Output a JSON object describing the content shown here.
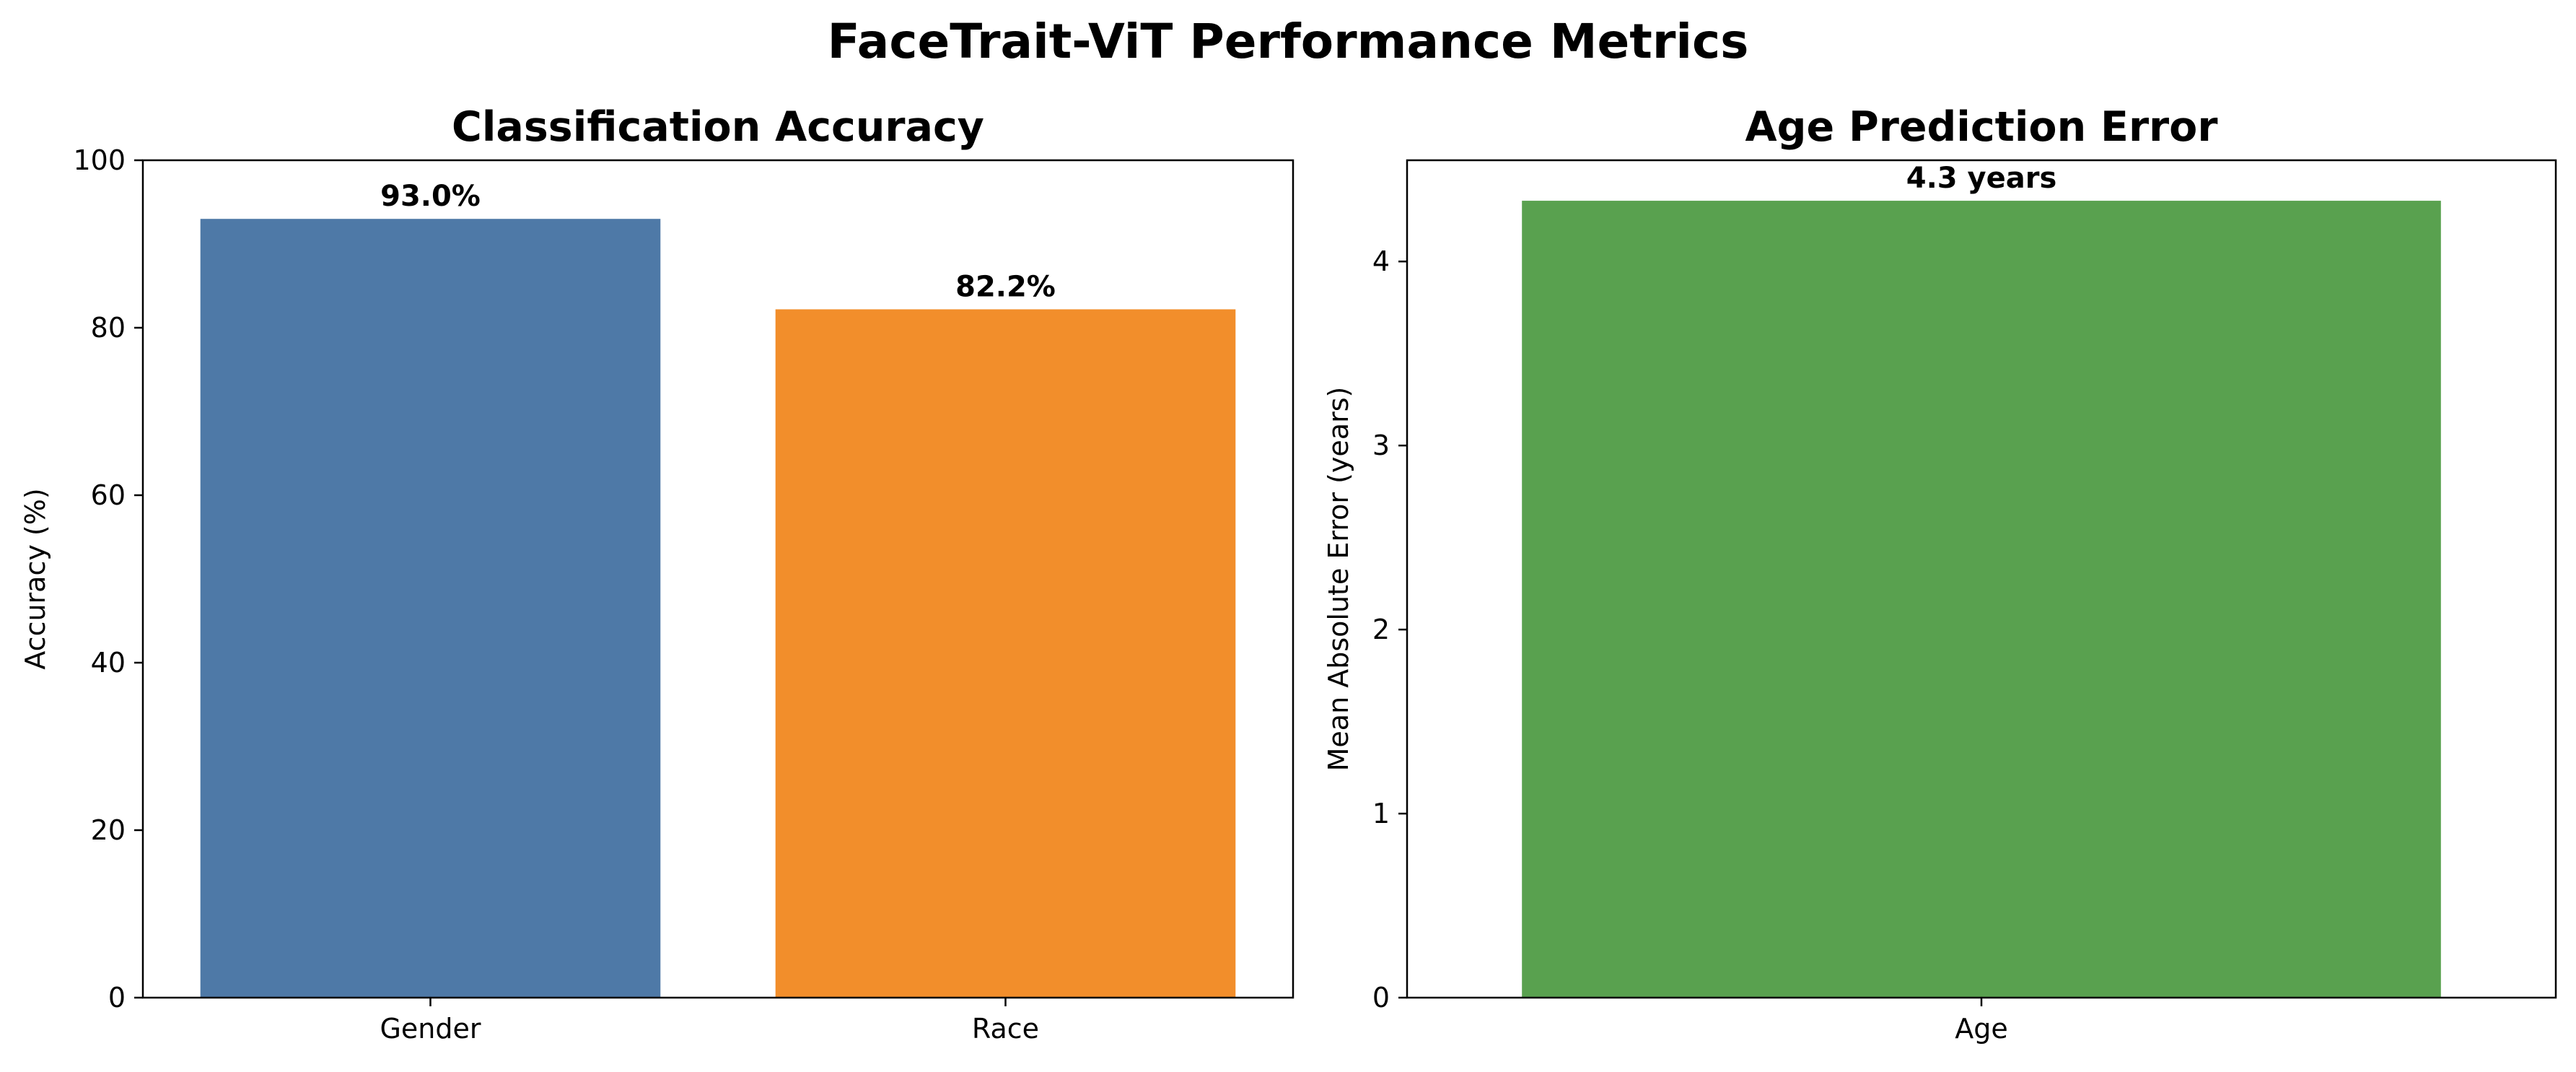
{
  "title": "FaceTrait-ViT Performance Metrics",
  "chart_data": [
    {
      "type": "bar",
      "title": "Classification Accuracy",
      "xlabel": "",
      "ylabel": "Accuracy (%)",
      "categories": [
        "Gender",
        "Race"
      ],
      "values": [
        93.0,
        82.2
      ],
      "value_labels": [
        "93.0%",
        "82.2%"
      ],
      "colors": [
        "#4e79a7",
        "#f28e2b"
      ],
      "ylim": [
        0,
        100
      ],
      "yticks": [
        0,
        20,
        40,
        60,
        80,
        100
      ],
      "grid": false,
      "legend": false
    },
    {
      "type": "bar",
      "title": "Age Prediction Error",
      "xlabel": "",
      "ylabel": "Mean Absolute Error (years)",
      "categories": [
        "Age"
      ],
      "values": [
        4.33
      ],
      "value_labels": [
        "4.3 years"
      ],
      "colors": [
        "#59a14f"
      ],
      "ylim": [
        0,
        4.55
      ],
      "yticks": [
        0,
        1,
        2,
        3,
        4
      ],
      "grid": false,
      "legend": false
    }
  ]
}
